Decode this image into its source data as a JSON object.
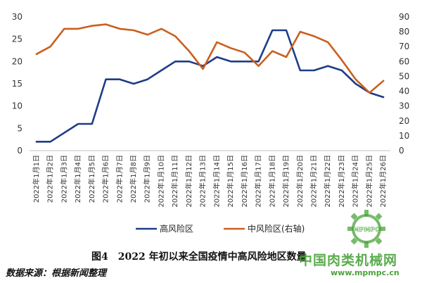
{
  "chart_data": {
    "type": "line",
    "categories": [
      "2022年1月1日",
      "2022年1月2日",
      "2022年1月3日",
      "2022年1月4日",
      "2022年1月5日",
      "2022年1月6日",
      "2022年1月7日",
      "2022年1月8日",
      "2022年1月9日",
      "2022年1月10日",
      "2022年1月11日",
      "2022年1月12日",
      "2022年1月13日",
      "2022年1月14日",
      "2022年1月15日",
      "2022年1月16日",
      "2022年1月17日",
      "2022年1月18日",
      "2022年1月19日",
      "2022年1月20日",
      "2022年1月21日",
      "2022年1月22日",
      "2022年1月23日",
      "2022年1月24日",
      "2022年1月25日",
      "2022年1月26日"
    ],
    "series": [
      {
        "name": "高风险区",
        "axis": "left",
        "color": "#1f3c88",
        "values": [
          2,
          2,
          4,
          6,
          6,
          16,
          16,
          15,
          16,
          18,
          20,
          20,
          19,
          21,
          20,
          20,
          20,
          27,
          27,
          18,
          18,
          19,
          18,
          15,
          13,
          12
        ]
      },
      {
        "name": "中风险区(右轴)",
        "axis": "right",
        "color": "#c9601f",
        "values": [
          65,
          70,
          82,
          82,
          84,
          85,
          82,
          81,
          78,
          82,
          77,
          67,
          55,
          73,
          69,
          66,
          57,
          67,
          63,
          80,
          77,
          73,
          61,
          48,
          39,
          47
        ]
      }
    ],
    "ylim_left": [
      0,
      30
    ],
    "yticks_left": [
      0,
      5,
      10,
      15,
      20,
      25,
      30
    ],
    "ylim_right": [
      0,
      90
    ],
    "yticks_right": [
      0,
      10,
      20,
      30,
      40,
      50,
      60,
      70,
      80,
      90
    ],
    "legend": "bottom",
    "grid": false
  },
  "caption": "图4　2022 年初以来全国疫情中高风险地区数量",
  "source": "数据来源：根据新闻整理",
  "watermark": {
    "text": "中国肉类机械网",
    "url": "www.mpmpc.cn",
    "logo_text": "MPMPC"
  }
}
